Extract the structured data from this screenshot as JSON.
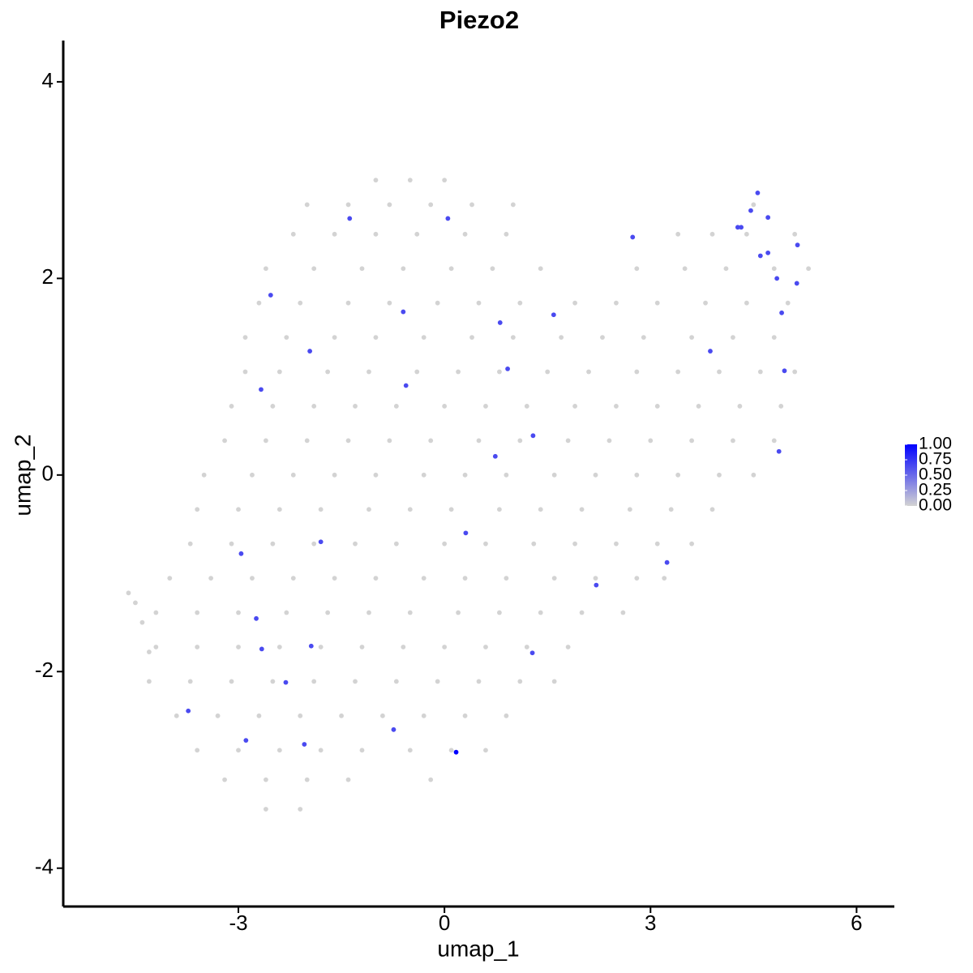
{
  "chart_data": {
    "type": "scatter",
    "title": "Piezo2",
    "xlabel": "umap_1",
    "ylabel": "umap_2",
    "xlim": [
      -5.55,
      6.55
    ],
    "ylim": [
      -4.39,
      4.42
    ],
    "xticks": [
      -3,
      0,
      3,
      6
    ],
    "yticks": [
      -4,
      -2,
      0,
      2,
      4
    ],
    "colors": [
      "#d3d3d3",
      "#0000ff"
    ],
    "colorbar_ticks": [
      {
        "value": 0,
        "label": "0.00"
      },
      {
        "value": 0.25,
        "label": "0.25"
      },
      {
        "value": 0.5,
        "label": "0.50"
      },
      {
        "value": 0.75,
        "label": "0.75"
      },
      {
        "value": 1,
        "label": "1.00"
      }
    ],
    "x": [
      -1.0,
      -0.5,
      0.0,
      -2.0,
      -1.4,
      -0.8,
      -0.2,
      0.4,
      1.0,
      4.5,
      -2.2,
      -1.6,
      -1.0,
      -0.4,
      0.3,
      0.9,
      3.4,
      3.9,
      4.4,
      5.1,
      -2.6,
      -1.9,
      -1.2,
      -0.6,
      0.1,
      0.7,
      1.4,
      2.8,
      3.5,
      4.1,
      4.8,
      5.3,
      -2.7,
      -2.1,
      -1.4,
      -0.8,
      -0.1,
      0.5,
      1.1,
      1.9,
      2.5,
      3.1,
      3.8,
      4.4,
      5.0,
      -2.9,
      -2.3,
      -1.6,
      -1.0,
      -0.3,
      0.4,
      1.0,
      1.7,
      2.3,
      2.9,
      3.6,
      4.2,
      4.8,
      -2.9,
      -2.4,
      -1.7,
      -1.1,
      -0.4,
      0.2,
      0.8,
      1.5,
      2.1,
      2.8,
      3.4,
      4.0,
      4.6,
      5.1,
      -3.1,
      -2.5,
      -1.9,
      -1.3,
      -0.7,
      0.0,
      0.6,
      1.2,
      1.9,
      2.5,
      3.1,
      3.7,
      4.3,
      4.9,
      -3.2,
      -2.6,
      -2.0,
      -1.4,
      -0.8,
      -0.2,
      0.5,
      1.1,
      1.8,
      2.4,
      3.0,
      3.6,
      4.2,
      4.8,
      -3.5,
      -2.8,
      -2.2,
      -1.6,
      -1.0,
      -0.3,
      0.3,
      0.9,
      1.6,
      2.2,
      2.8,
      3.4,
      4.0,
      4.5,
      -3.6,
      -3.0,
      -2.4,
      -1.8,
      -1.1,
      -0.5,
      0.1,
      0.8,
      1.4,
      2.0,
      2.7,
      3.3,
      3.9,
      -3.7,
      -3.1,
      -2.5,
      -1.9,
      -1.3,
      -0.7,
      0.0,
      0.6,
      1.3,
      1.9,
      2.5,
      3.1,
      3.6,
      -4.0,
      -3.4,
      -2.8,
      -2.2,
      -1.6,
      -1.0,
      -0.3,
      0.3,
      0.9,
      1.6,
      2.2,
      2.8,
      3.2,
      -4.2,
      -3.6,
      -3.0,
      -2.3,
      -1.7,
      -1.1,
      -0.5,
      0.2,
      0.8,
      1.4,
      2.0,
      2.6,
      -4.2,
      -3.6,
      -3.0,
      -2.4,
      -1.8,
      -1.2,
      -0.6,
      0.0,
      0.6,
      1.2,
      1.8,
      -4.3,
      -3.7,
      -3.1,
      -2.5,
      -1.9,
      -1.3,
      -0.7,
      -0.1,
      0.5,
      1.1,
      1.6,
      -3.9,
      -3.3,
      -2.7,
      -2.1,
      -1.5,
      -0.9,
      -0.3,
      0.3,
      0.9,
      -3.6,
      -3.0,
      -2.4,
      -1.8,
      -1.2,
      -0.5,
      0.1,
      0.6,
      -3.2,
      -2.6,
      -2.0,
      -1.4,
      -0.2,
      -2.6,
      -2.1,
      -4.6,
      -4.5,
      -4.4,
      -4.3,
      -1.38,
      0.05,
      2.74,
      4.56,
      4.46,
      4.27,
      4.32,
      4.71,
      4.6,
      4.71,
      5.14,
      4.84,
      5.13,
      4.91,
      -2.53,
      -0.6,
      1.59,
      0.81,
      -1.96,
      3.87,
      0.92,
      -0.56,
      4.95,
      -2.67,
      1.29,
      0.74,
      4.87,
      0.31,
      -1.8,
      -2.96,
      3.24,
      2.21,
      -2.74,
      -2.66,
      -1.94,
      1.28,
      -2.31,
      -3.73,
      -0.74,
      -2.89,
      -2.04,
      0.17
    ],
    "y": [
      3.0,
      3.0,
      3.0,
      2.75,
      2.75,
      2.75,
      2.75,
      2.75,
      2.75,
      2.75,
      2.45,
      2.45,
      2.45,
      2.45,
      2.45,
      2.45,
      2.45,
      2.45,
      2.45,
      2.45,
      2.1,
      2.1,
      2.1,
      2.1,
      2.1,
      2.1,
      2.1,
      2.1,
      2.1,
      2.1,
      2.1,
      2.1,
      1.75,
      1.75,
      1.75,
      1.75,
      1.75,
      1.75,
      1.75,
      1.75,
      1.75,
      1.75,
      1.75,
      1.75,
      1.75,
      1.4,
      1.4,
      1.4,
      1.4,
      1.4,
      1.4,
      1.4,
      1.4,
      1.4,
      1.4,
      1.4,
      1.4,
      1.4,
      1.05,
      1.05,
      1.05,
      1.05,
      1.05,
      1.05,
      1.05,
      1.05,
      1.05,
      1.05,
      1.05,
      1.05,
      1.05,
      1.05,
      0.7,
      0.7,
      0.7,
      0.7,
      0.7,
      0.7,
      0.7,
      0.7,
      0.7,
      0.7,
      0.7,
      0.7,
      0.7,
      0.7,
      0.35,
      0.35,
      0.35,
      0.35,
      0.35,
      0.35,
      0.35,
      0.35,
      0.35,
      0.35,
      0.35,
      0.35,
      0.35,
      0.35,
      0.0,
      0.0,
      0.0,
      0.0,
      0.0,
      0.0,
      0.0,
      0.0,
      0.0,
      0.0,
      0.0,
      0.0,
      0.0,
      0.0,
      -0.35,
      -0.35,
      -0.35,
      -0.35,
      -0.35,
      -0.35,
      -0.35,
      -0.35,
      -0.35,
      -0.35,
      -0.35,
      -0.35,
      -0.35,
      -0.7,
      -0.7,
      -0.7,
      -0.7,
      -0.7,
      -0.7,
      -0.7,
      -0.7,
      -0.7,
      -0.7,
      -0.7,
      -0.7,
      -0.7,
      -1.05,
      -1.05,
      -1.05,
      -1.05,
      -1.05,
      -1.05,
      -1.05,
      -1.05,
      -1.05,
      -1.05,
      -1.05,
      -1.05,
      -1.05,
      -1.4,
      -1.4,
      -1.4,
      -1.4,
      -1.4,
      -1.4,
      -1.4,
      -1.4,
      -1.4,
      -1.4,
      -1.4,
      -1.4,
      -1.75,
      -1.75,
      -1.75,
      -1.75,
      -1.75,
      -1.75,
      -1.75,
      -1.75,
      -1.75,
      -1.75,
      -1.75,
      -2.1,
      -2.1,
      -2.1,
      -2.1,
      -2.1,
      -2.1,
      -2.1,
      -2.1,
      -2.1,
      -2.1,
      -2.1,
      -2.45,
      -2.45,
      -2.45,
      -2.45,
      -2.45,
      -2.45,
      -2.45,
      -2.45,
      -2.45,
      -2.8,
      -2.8,
      -2.8,
      -2.8,
      -2.8,
      -2.8,
      -2.8,
      -2.8,
      -3.1,
      -3.1,
      -3.1,
      -3.1,
      -3.1,
      -3.4,
      -3.4,
      -1.2,
      -1.3,
      -1.5,
      -1.8,
      2.61,
      2.61,
      2.42,
      2.87,
      2.69,
      2.52,
      2.52,
      2.62,
      2.23,
      2.26,
      2.34,
      2.0,
      1.95,
      1.65,
      1.83,
      1.66,
      1.63,
      1.55,
      1.26,
      1.26,
      1.08,
      0.91,
      1.06,
      0.87,
      0.4,
      0.19,
      0.24,
      -0.59,
      -0.68,
      -0.8,
      -0.89,
      -1.12,
      -1.46,
      -1.77,
      -1.74,
      -1.81,
      -2.11,
      -2.4,
      -2.59,
      -2.7,
      -2.74,
      -2.82
    ],
    "values": [
      0,
      0,
      0,
      0,
      0,
      0,
      0,
      0,
      0,
      0,
      0,
      0,
      0,
      0,
      0,
      0,
      0,
      0,
      0,
      0,
      0,
      0,
      0,
      0,
      0,
      0,
      0,
      0,
      0,
      0,
      0,
      0,
      0,
      0,
      0,
      0,
      0,
      0,
      0,
      0,
      0,
      0,
      0,
      0,
      0,
      0,
      0,
      0,
      0,
      0,
      0,
      0,
      0,
      0,
      0,
      0,
      0,
      0,
      0,
      0,
      0,
      0,
      0,
      0,
      0,
      0,
      0,
      0,
      0,
      0,
      0,
      0,
      0,
      0,
      0,
      0,
      0,
      0,
      0,
      0,
      0,
      0,
      0,
      0,
      0,
      0,
      0,
      0,
      0,
      0,
      0,
      0,
      0,
      0,
      0,
      0,
      0,
      0,
      0,
      0,
      0,
      0,
      0,
      0,
      0,
      0,
      0,
      0,
      0,
      0,
      0,
      0,
      0,
      0,
      0,
      0,
      0,
      0,
      0,
      0,
      0,
      0,
      0,
      0,
      0,
      0,
      0,
      0,
      0,
      0,
      0,
      0,
      0,
      0,
      0,
      0,
      0,
      0,
      0,
      0,
      0,
      0,
      0,
      0,
      0,
      0,
      0,
      0,
      0,
      0,
      0,
      0,
      0,
      0,
      0,
      0,
      0,
      0,
      0,
      0,
      0,
      0,
      0,
      0,
      0,
      0,
      0,
      0,
      0,
      0,
      0,
      0,
      0,
      0,
      0,
      0,
      0,
      0,
      0,
      0,
      0,
      0,
      0,
      0,
      0,
      0,
      0,
      0,
      0,
      0,
      0,
      0,
      0,
      0,
      0,
      0,
      0,
      0,
      0,
      0,
      0,
      0,
      0,
      0,
      0,
      0,
      0,
      0,
      0,
      0,
      0,
      0,
      0,
      0,
      0,
      0.65,
      0.65,
      0.65,
      0.65,
      0.65,
      0.65,
      0.65,
      0.65,
      0.65,
      0.65,
      0.65,
      0.65,
      0.65,
      0.65,
      0.65,
      0.65,
      0.65,
      0.65,
      0.65,
      0.65,
      0.65,
      0.65,
      0.65,
      0.65,
      0.65,
      0.65,
      0.65,
      0.65,
      0.65,
      0.65,
      0.65,
      0.65,
      0.65,
      0.65,
      0.65,
      0.65,
      0.65,
      0.65,
      0.65,
      0.65,
      0.65,
      1.0
    ]
  }
}
